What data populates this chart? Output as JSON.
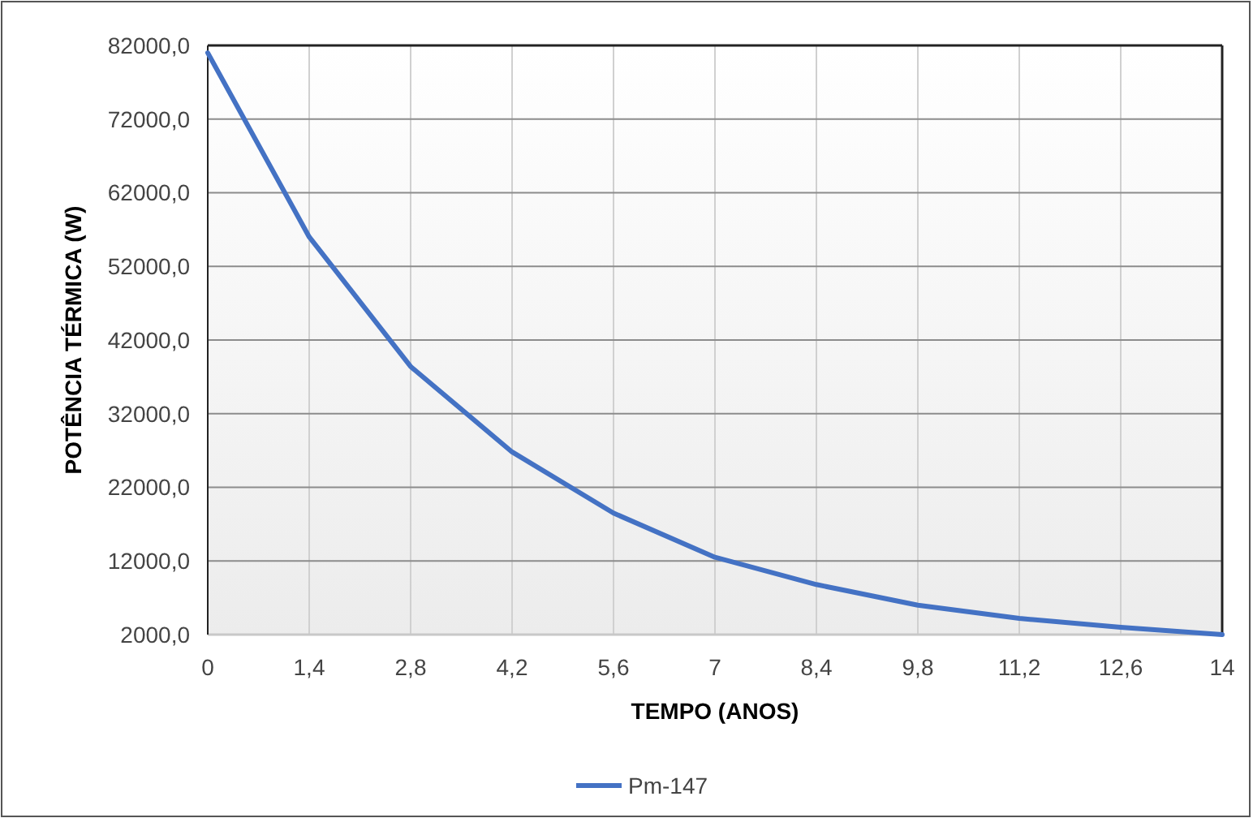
{
  "chart_data": {
    "type": "line",
    "xlabel": "TEMPO (ANOS)",
    "ylabel": "POTÊNCIA TÉRMICA (W)",
    "x": [
      0,
      1.4,
      2.8,
      4.2,
      5.6,
      7,
      8.4,
      9.8,
      11.2,
      12.6,
      14
    ],
    "series": [
      {
        "name": "Pm-147",
        "color": "#4472c4",
        "values": [
          81000,
          56000,
          38400,
          26800,
          18500,
          12500,
          8800,
          6000,
          4200,
          3000,
          2000
        ]
      }
    ],
    "xlim": [
      0,
      14
    ],
    "xticks": [
      {
        "value": 0,
        "label": "0"
      },
      {
        "value": 1.4,
        "label": "1,4"
      },
      {
        "value": 2.8,
        "label": "2,8"
      },
      {
        "value": 4.2,
        "label": "4,2"
      },
      {
        "value": 5.6,
        "label": "5,6"
      },
      {
        "value": 7,
        "label": "7"
      },
      {
        "value": 8.4,
        "label": "8,4"
      },
      {
        "value": 9.8,
        "label": "9,8"
      },
      {
        "value": 11.2,
        "label": "11,2"
      },
      {
        "value": 12.6,
        "label": "12,6"
      },
      {
        "value": 14,
        "label": "14"
      }
    ],
    "ylim": [
      2000,
      82000
    ],
    "yticks": [
      {
        "value": 2000,
        "label": "2000,0"
      },
      {
        "value": 12000,
        "label": "12000,0"
      },
      {
        "value": 22000,
        "label": "22000,0"
      },
      {
        "value": 32000,
        "label": "32000,0"
      },
      {
        "value": 42000,
        "label": "42000,0"
      },
      {
        "value": 52000,
        "label": "52000,0"
      },
      {
        "value": 62000,
        "label": "62000,0"
      },
      {
        "value": 72000,
        "label": "72000,0"
      },
      {
        "value": 82000,
        "label": "82000,0"
      }
    ],
    "grid": true,
    "legend": "bottom",
    "marker": "none",
    "line_style": "solid"
  }
}
